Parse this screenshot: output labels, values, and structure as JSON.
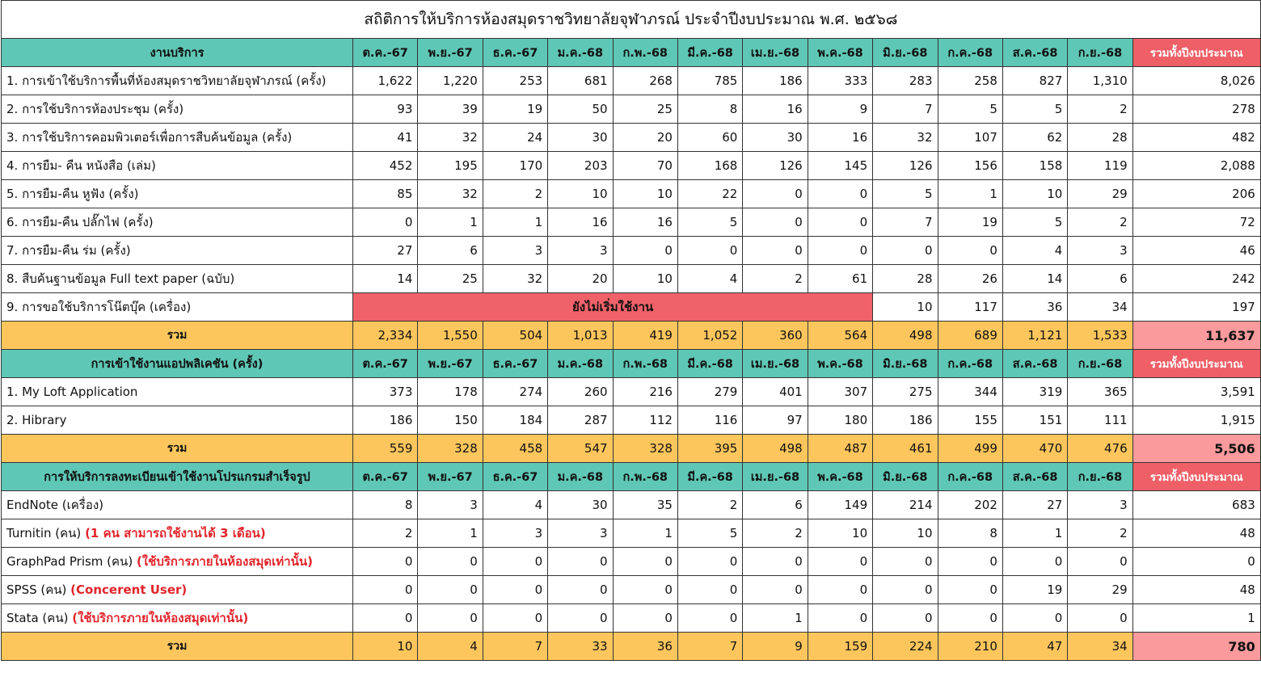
{
  "title": "สถิติการให้บริการห้องสมุดราชวิทยาลัยจุฬาภรณ์ ประจำปีงบประมาณ พ.ศ. ๒๕๖๘",
  "months": [
    "ต.ค.-67",
    "พ.ย.-67",
    "ธ.ค.-67",
    "ม.ค.-68",
    "ก.พ.-68",
    "มี.ค.-68",
    "เม.ย.-68",
    "พ.ค.-68",
    "มิ.ย.-68",
    "ก.ค.-68",
    "ส.ค.-68",
    "ก.ย.-68"
  ],
  "total_header": "รวมทั้งปีงบประมาณ",
  "sum_label": "รวม",
  "colors": {
    "teal": "#5fc7b5",
    "orange": "#fdc65c",
    "red": "#ef5f67",
    "pink": "#fa9a9c",
    "note": "#e2242b"
  },
  "sections": [
    {
      "header": "งานบริการ",
      "rows": [
        {
          "label": "1. การเข้าใช้บริการพื้นที่ห้องสมุดราชวิทยาลัยจุฬาภรณ์ (ครั้ง)",
          "values": [
            "1,622",
            "1,220",
            "253",
            "681",
            "268",
            "785",
            "186",
            "333",
            "283",
            "258",
            "827",
            "1,310"
          ],
          "total": "8,026"
        },
        {
          "label": "2. การใช้บริการห้องประชุม  (ครั้ง)",
          "values": [
            "93",
            "39",
            "19",
            "50",
            "25",
            "8",
            "16",
            "9",
            "7",
            "5",
            "5",
            "2"
          ],
          "total": "278"
        },
        {
          "label": "3. การใช้บริการคอมพิวเตอร์เพื่อการสืบค้นข้อมูล (ครั้ง)",
          "values": [
            "41",
            "32",
            "24",
            "30",
            "20",
            "60",
            "30",
            "16",
            "32",
            "107",
            "62",
            "28"
          ],
          "total": "482"
        },
        {
          "label": "4. การยืม- คืน หนังสือ (เล่ม)",
          "values": [
            "452",
            "195",
            "170",
            "203",
            "70",
            "168",
            "126",
            "145",
            "126",
            "156",
            "158",
            "119"
          ],
          "total": "2,088"
        },
        {
          "label": "5. การยืม-คืน หูฟัง (ครั้ง)",
          "values": [
            "85",
            "32",
            "2",
            "10",
            "10",
            "22",
            "0",
            "0",
            "5",
            "1",
            "10",
            "29"
          ],
          "total": "206"
        },
        {
          "label": "6. การยืม-คืน ปลั๊กไฟ (ครั้ง)",
          "values": [
            "0",
            "1",
            "1",
            "16",
            "16",
            "5",
            "0",
            "0",
            "7",
            "19",
            "5",
            "2"
          ],
          "total": "72"
        },
        {
          "label": "7. การยืม-คืน ร่ม (ครั้ง)",
          "values": [
            "27",
            "6",
            "3",
            "3",
            "0",
            "0",
            "0",
            "0",
            "0",
            "0",
            "4",
            "3"
          ],
          "total": "46"
        },
        {
          "label": "8. สืบค้นฐานข้อมูล Full text paper (ฉบับ)",
          "values": [
            "14",
            "25",
            "32",
            "20",
            "10",
            "4",
            "2",
            "61",
            "28",
            "26",
            "14",
            "6"
          ],
          "total": "242"
        },
        {
          "label": "9. การขอใช้บริการโน๊ตบุ๊ค (เครื่อง)",
          "banner": "ยังไม่เริ่มใช้งาน",
          "values": [
            "10",
            "117",
            "36",
            "34"
          ],
          "total": "197"
        }
      ],
      "sum": {
        "values": [
          "2,334",
          "1,550",
          "504",
          "1,013",
          "419",
          "1,052",
          "360",
          "564",
          "498",
          "689",
          "1,121",
          "1,533"
        ],
        "total": "11,637"
      }
    },
    {
      "header": "การเข้าใช้งานแอปพลิเคชัน (ครั้ง)",
      "rows": [
        {
          "label": "1. My Loft Application",
          "values": [
            "373",
            "178",
            "274",
            "260",
            "216",
            "279",
            "401",
            "307",
            "275",
            "344",
            "319",
            "365"
          ],
          "total": "3,591"
        },
        {
          "label": "2. Hibrary",
          "values": [
            "186",
            "150",
            "184",
            "287",
            "112",
            "116",
            "97",
            "180",
            "186",
            "155",
            "151",
            "111"
          ],
          "total": "1,915"
        }
      ],
      "sum": {
        "values": [
          "559",
          "328",
          "458",
          "547",
          "328",
          "395",
          "498",
          "487",
          "461",
          "499",
          "470",
          "476"
        ],
        "total": "5,506"
      }
    },
    {
      "header": "การให้บริการลงทะเบียนเข้าใช้งานโปรแกรมสำเร็จรูป",
      "rows": [
        {
          "label": "EndNote (เครื่อง)",
          "values": [
            "8",
            "3",
            "4",
            "30",
            "35",
            "2",
            "6",
            "149",
            "214",
            "202",
            "27",
            "3"
          ],
          "total": "683"
        },
        {
          "label": "Turnitin (คน)",
          "note": "(1 คน สามารถใช้งานได้ 3 เดือน)",
          "values": [
            "2",
            "1",
            "3",
            "3",
            "1",
            "5",
            "2",
            "10",
            "10",
            "8",
            "1",
            "2"
          ],
          "total": "48"
        },
        {
          "label": "GraphPad Prism (คน)",
          "note": "(ใช้บริการภายในห้องสมุดเท่านั้น)",
          "values": [
            "0",
            "0",
            "0",
            "0",
            "0",
            "0",
            "0",
            "0",
            "0",
            "0",
            "0",
            "0"
          ],
          "total": "0"
        },
        {
          "label": "SPSS (คน)",
          "note": "(Concerent User)",
          "values": [
            "0",
            "0",
            "0",
            "0",
            "0",
            "0",
            "0",
            "0",
            "0",
            "0",
            "19",
            "29"
          ],
          "total": "48"
        },
        {
          "label": "Stata (คน)",
          "note": "(ใช้บริการภายในห้องสมุดเท่านั้น)",
          "values": [
            "0",
            "0",
            "0",
            "0",
            "0",
            "0",
            "1",
            "0",
            "0",
            "0",
            "0",
            "0"
          ],
          "total": "1"
        }
      ],
      "sum": {
        "values": [
          "10",
          "4",
          "7",
          "33",
          "36",
          "7",
          "9",
          "159",
          "224",
          "210",
          "47",
          "34"
        ],
        "total": "780"
      }
    }
  ]
}
